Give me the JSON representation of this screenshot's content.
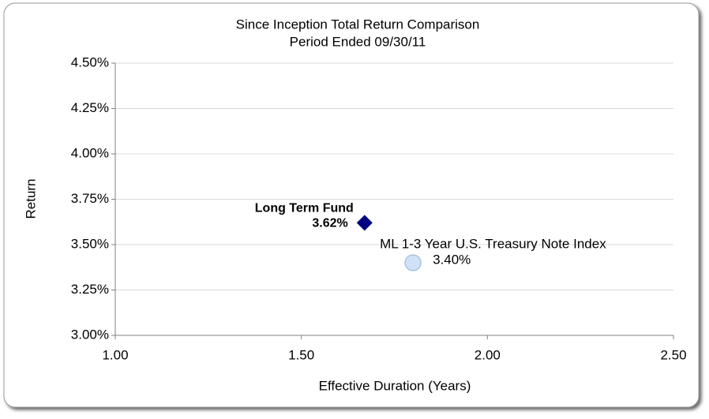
{
  "chart_data": {
    "type": "scatter",
    "title": "Since Inception Total Return Comparison",
    "subtitle": "Period Ended 09/30/11",
    "xlabel": "Effective Duration (Years)",
    "ylabel": "Return",
    "xlim": [
      1.0,
      2.5
    ],
    "xticks": [
      {
        "value": 1.0,
        "label": "1.00"
      },
      {
        "value": 1.5,
        "label": "1.50"
      },
      {
        "value": 2.0,
        "label": "2.00"
      },
      {
        "value": 2.5,
        "label": "2.50"
      }
    ],
    "ylim": [
      3.0,
      4.5
    ],
    "yticks": [
      {
        "value": 3.0,
        "label": "3.00%"
      },
      {
        "value": 3.25,
        "label": "3.25%"
      },
      {
        "value": 3.5,
        "label": "3.50%"
      },
      {
        "value": 3.75,
        "label": "3.75%"
      },
      {
        "value": 4.0,
        "label": "4.00%"
      },
      {
        "value": 4.25,
        "label": "4.25%"
      },
      {
        "value": 4.5,
        "label": "4.50%"
      }
    ],
    "grid": true,
    "series": [
      {
        "name": "Long Term Fund",
        "color": "#000080",
        "marker": "diamond",
        "x": [
          1.67
        ],
        "values": [
          3.62
        ],
        "value_labels": [
          "3.62%"
        ]
      },
      {
        "name": "ML 1-3 Year U.S. Treasury Note Index",
        "color": "#cfe2f7",
        "marker": "circle",
        "x": [
          1.8
        ],
        "values": [
          3.4
        ],
        "value_labels": [
          "3.40%"
        ]
      }
    ]
  }
}
